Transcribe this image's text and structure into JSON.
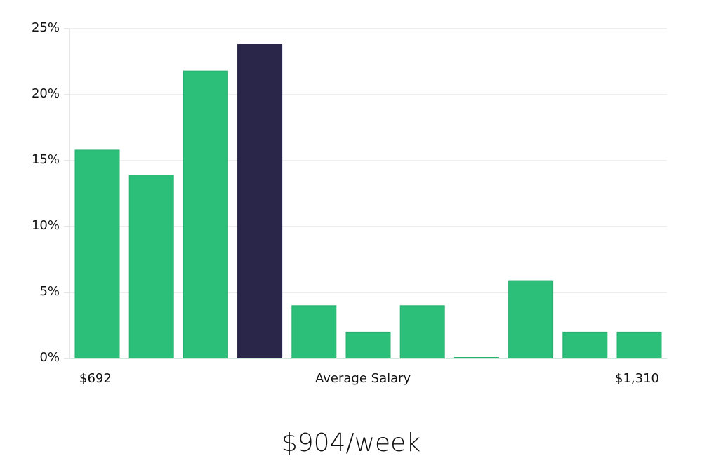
{
  "chart_data": {
    "type": "bar",
    "title": "",
    "xlabel": "Average Salary",
    "ylabel": "",
    "x_min_label": "$692",
    "x_max_label": "$1,310",
    "categories": [
      "bin1",
      "bin2",
      "bin3",
      "bin4",
      "bin5",
      "bin6",
      "bin7",
      "bin8",
      "bin9",
      "bin10",
      "bin11"
    ],
    "values": [
      15.8,
      13.9,
      21.8,
      23.8,
      4.0,
      2.0,
      4.0,
      0.0,
      5.9,
      2.0,
      2.0
    ],
    "highlight_index": 3,
    "ylim": [
      0,
      25
    ],
    "yticks": [
      "0%",
      "5%",
      "10%",
      "15%",
      "20%",
      "25%"
    ],
    "grid": true,
    "colors": {
      "bar": "#2bbf79",
      "highlight": "#29264a",
      "grid": "#dddddd",
      "axis": "#cccccc"
    }
  },
  "summary": {
    "average_salary": "$904/week"
  }
}
